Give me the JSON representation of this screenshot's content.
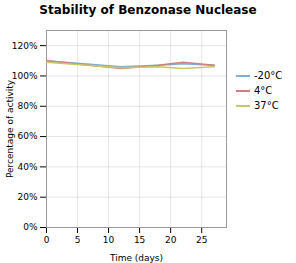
{
  "chart_data": {
    "type": "line",
    "title": "Stability of Benzonase Nuclease",
    "xlabel": "Time (days)",
    "ylabel": "Percentage of activity",
    "x": [
      0,
      12,
      18,
      22,
      27
    ],
    "series": [
      {
        "name": "-20°C",
        "color": "#7bafd4",
        "values": [
          1.1,
          1.06,
          1.07,
          1.08,
          1.07
        ]
      },
      {
        "name": "4°C",
        "color": "#d08080",
        "values": [
          1.1,
          1.05,
          1.07,
          1.09,
          1.07
        ]
      },
      {
        "name": "37°C",
        "color": "#c8c860",
        "values": [
          1.09,
          1.055,
          1.06,
          1.05,
          1.06
        ]
      }
    ],
    "xlim": [
      0,
      29
    ],
    "ylim": [
      0,
      1.3
    ],
    "xticks": [
      0,
      5,
      10,
      15,
      20,
      25
    ],
    "yticks": [
      {
        "value": 0,
        "label": "0%"
      },
      {
        "value": 0.2,
        "label": "20%"
      },
      {
        "value": 0.4,
        "label": "40%"
      },
      {
        "value": 0.6,
        "label": "60%"
      },
      {
        "value": 0.8,
        "label": "80%"
      },
      {
        "value": 1.0,
        "label": "100%"
      },
      {
        "value": 1.2,
        "label": "120%"
      }
    ],
    "grid": true,
    "legend": "right"
  }
}
